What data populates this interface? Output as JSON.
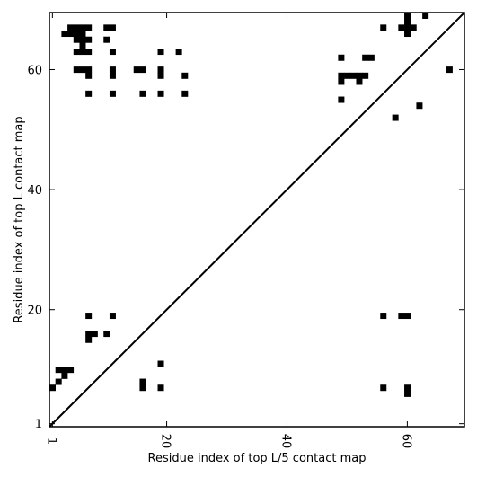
{
  "chart_data": {
    "type": "heatmap",
    "xlabel": "Residue index of top L/5 contact map",
    "ylabel": "Residue index of top L contact map",
    "xlim": [
      0.5,
      69.5
    ],
    "ylim": [
      0.5,
      69.5
    ],
    "x_ticks": [
      {
        "value": 1,
        "label": "1"
      },
      {
        "value": 20,
        "label": "20"
      },
      {
        "value": 40,
        "label": "40"
      },
      {
        "value": 60,
        "label": "60"
      }
    ],
    "y_ticks": [
      {
        "value": 1,
        "label": "1"
      },
      {
        "value": 20,
        "label": "20"
      },
      {
        "value": 40,
        "label": "40"
      },
      {
        "value": 60,
        "label": "60"
      }
    ],
    "diagonal": true,
    "contacts_upper": [
      [
        4,
        67
      ],
      [
        5,
        67
      ],
      [
        6,
        67
      ],
      [
        7,
        67
      ],
      [
        10,
        67
      ],
      [
        11,
        67
      ],
      [
        3,
        66
      ],
      [
        4,
        66
      ],
      [
        5,
        66
      ],
      [
        6,
        66
      ],
      [
        5,
        65
      ],
      [
        6,
        65
      ],
      [
        7,
        65
      ],
      [
        10,
        65
      ],
      [
        6,
        64
      ],
      [
        5,
        63
      ],
      [
        6,
        63
      ],
      [
        7,
        63
      ],
      [
        11,
        63
      ],
      [
        19,
        63
      ],
      [
        22,
        63
      ],
      [
        5,
        60
      ],
      [
        6,
        60
      ],
      [
        7,
        60
      ],
      [
        11,
        60
      ],
      [
        15,
        60
      ],
      [
        16,
        60
      ],
      [
        19,
        60
      ],
      [
        7,
        59
      ],
      [
        11,
        59
      ],
      [
        19,
        59
      ],
      [
        23,
        59
      ],
      [
        7,
        56
      ],
      [
        11,
        56
      ],
      [
        16,
        56
      ],
      [
        19,
        56
      ],
      [
        23,
        56
      ],
      [
        49,
        62
      ],
      [
        53,
        62
      ],
      [
        54,
        62
      ],
      [
        49,
        59
      ],
      [
        50,
        59
      ],
      [
        51,
        59
      ],
      [
        52,
        59
      ],
      [
        53,
        59
      ],
      [
        49,
        58
      ],
      [
        52,
        58
      ],
      [
        49,
        55
      ],
      [
        56,
        67
      ],
      [
        59,
        67
      ],
      [
        60,
        67
      ],
      [
        61,
        67
      ],
      [
        60,
        68
      ],
      [
        60,
        69
      ],
      [
        60,
        66
      ],
      [
        63,
        69
      ],
      [
        67,
        60
      ],
      [
        62,
        54
      ],
      [
        58,
        52
      ]
    ],
    "contacts_lower": [
      [
        7,
        19
      ],
      [
        11,
        19
      ],
      [
        7,
        16
      ],
      [
        8,
        16
      ],
      [
        10,
        16
      ],
      [
        7,
        15
      ],
      [
        19,
        11
      ],
      [
        2,
        10
      ],
      [
        3,
        10
      ],
      [
        4,
        10
      ],
      [
        3,
        9
      ],
      [
        2,
        8
      ],
      [
        16,
        8
      ],
      [
        1,
        7
      ],
      [
        16,
        7
      ],
      [
        19,
        7
      ],
      [
        56,
        19
      ],
      [
        59,
        19
      ],
      [
        60,
        19
      ],
      [
        56,
        7
      ],
      [
        60,
        7
      ],
      [
        60,
        6
      ]
    ],
    "cell_color": "#000000",
    "line_color": "#000000"
  }
}
